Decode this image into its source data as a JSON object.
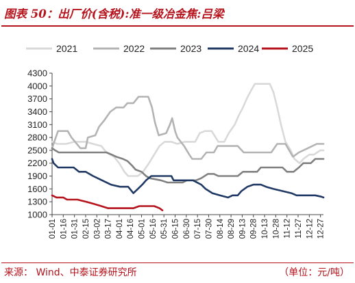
{
  "header": {
    "title": "图表 50：出厂价(含税):准一级冶金焦:吕梁"
  },
  "footer": {
    "source": "来源：  Wind、中泰证券研究所",
    "unit": "（单位：元/吨）"
  },
  "chart_data": {
    "type": "line",
    "title": "图表 50：出厂价(含税):准一级冶金焦:吕梁",
    "xlabel": "",
    "ylabel": "",
    "ylim": [
      1000,
      4300
    ],
    "yticks": [
      1000,
      1300,
      1600,
      1900,
      2200,
      2500,
      2800,
      3100,
      3400,
      3700,
      4000,
      4300
    ],
    "xlim_days": [
      1,
      365
    ],
    "xtick_labels": [
      "01-01",
      "01-16",
      "01-31",
      "02-15",
      "03-02",
      "03-17",
      "04-01",
      "04-16",
      "05-01",
      "05-16",
      "05-31",
      "06-15",
      "06-30",
      "07-15",
      "07-30",
      "08-14",
      "08-29",
      "09-13",
      "09-28",
      "10-13",
      "10-28",
      "11-12",
      "11-27",
      "12-12",
      "12-27"
    ],
    "grid": false,
    "legend_position": "top",
    "series": [
      {
        "name": "2021",
        "color": "#d9d9d9",
        "points": [
          [
            "01-01",
            2700
          ],
          [
            "01-08",
            2650
          ],
          [
            "01-20",
            2650
          ],
          [
            "01-31",
            2700
          ],
          [
            "02-15",
            2700
          ],
          [
            "02-25",
            2650
          ],
          [
            "03-08",
            2600
          ],
          [
            "03-15",
            2450
          ],
          [
            "03-25",
            2350
          ],
          [
            "04-01",
            2200
          ],
          [
            "04-08",
            2000
          ],
          [
            "04-13",
            1900
          ],
          [
            "04-26",
            1900
          ],
          [
            "05-03",
            2000
          ],
          [
            "05-11",
            2200
          ],
          [
            "05-18",
            2400
          ],
          [
            "05-25",
            2600
          ],
          [
            "06-01",
            2700
          ],
          [
            "06-10",
            2700
          ],
          [
            "06-18",
            2650
          ],
          [
            "06-28",
            2700
          ],
          [
            "07-12",
            2700
          ],
          [
            "07-18",
            2900
          ],
          [
            "07-25",
            2950
          ],
          [
            "08-03",
            2950
          ],
          [
            "08-12",
            2700
          ],
          [
            "08-20",
            2700
          ],
          [
            "08-26",
            2900
          ],
          [
            "09-03",
            3100
          ],
          [
            "09-08",
            3300
          ],
          [
            "09-14",
            3500
          ],
          [
            "09-19",
            3700
          ],
          [
            "09-25",
            3900
          ],
          [
            "09-30",
            4050
          ],
          [
            "10-20",
            4050
          ],
          [
            "10-25",
            3850
          ],
          [
            "10-30",
            3500
          ],
          [
            "11-04",
            3100
          ],
          [
            "11-10",
            2700
          ],
          [
            "11-17",
            2500
          ],
          [
            "11-22",
            2300
          ],
          [
            "11-29",
            2200
          ],
          [
            "12-04",
            2300
          ],
          [
            "12-12",
            2400
          ],
          [
            "12-18",
            2400
          ],
          [
            "12-27",
            2500
          ],
          [
            "12-31",
            2500
          ]
        ]
      },
      {
        "name": "2022",
        "color": "#b3b3b3",
        "points": [
          [
            "01-01",
            2550
          ],
          [
            "01-06",
            2800
          ],
          [
            "01-09",
            2950
          ],
          [
            "01-22",
            2950
          ],
          [
            "01-27",
            2800
          ],
          [
            "02-08",
            2550
          ],
          [
            "02-15",
            2550
          ],
          [
            "02-18",
            2800
          ],
          [
            "02-28",
            2850
          ],
          [
            "03-05",
            3050
          ],
          [
            "03-12",
            3200
          ],
          [
            "03-20",
            3400
          ],
          [
            "03-28",
            3500
          ],
          [
            "04-07",
            3500
          ],
          [
            "04-12",
            3600
          ],
          [
            "04-20",
            3600
          ],
          [
            "04-27",
            3750
          ],
          [
            "05-10",
            3750
          ],
          [
            "05-15",
            3500
          ],
          [
            "05-19",
            3150
          ],
          [
            "05-24",
            2850
          ],
          [
            "06-03",
            2900
          ],
          [
            "06-08",
            3100
          ],
          [
            "06-11",
            3250
          ],
          [
            "06-15",
            2950
          ],
          [
            "06-18",
            2800
          ],
          [
            "06-27",
            2600
          ],
          [
            "07-04",
            2400
          ],
          [
            "07-08",
            2300
          ],
          [
            "07-20",
            2300
          ],
          [
            "07-27",
            2450
          ],
          [
            "08-06",
            2450
          ],
          [
            "08-11",
            2600
          ],
          [
            "09-07",
            2600
          ],
          [
            "09-15",
            2450
          ],
          [
            "10-22",
            2450
          ],
          [
            "10-30",
            2650
          ],
          [
            "11-10",
            2650
          ],
          [
            "11-20",
            2350
          ],
          [
            "11-28",
            2450
          ],
          [
            "12-10",
            2550
          ],
          [
            "12-22",
            2650
          ],
          [
            "12-31",
            2650
          ]
        ]
      },
      {
        "name": "2023",
        "color": "#808080",
        "points": [
          [
            "01-01",
            2550
          ],
          [
            "01-05",
            2500
          ],
          [
            "01-10",
            2450
          ],
          [
            "03-15",
            2450
          ],
          [
            "03-22",
            2400
          ],
          [
            "03-28",
            2350
          ],
          [
            "04-06",
            2300
          ],
          [
            "04-12",
            2250
          ],
          [
            "04-18",
            2150
          ],
          [
            "04-23",
            2050
          ],
          [
            "05-01",
            2000
          ],
          [
            "05-07",
            1900
          ],
          [
            "05-12",
            1850
          ],
          [
            "05-27",
            1800
          ],
          [
            "06-05",
            1750
          ],
          [
            "06-25",
            1750
          ],
          [
            "07-01",
            1800
          ],
          [
            "07-13",
            1800
          ],
          [
            "07-20",
            1850
          ],
          [
            "07-29",
            1950
          ],
          [
            "08-06",
            1950
          ],
          [
            "08-12",
            1900
          ],
          [
            "09-07",
            1900
          ],
          [
            "09-14",
            2000
          ],
          [
            "10-03",
            2000
          ],
          [
            "10-08",
            2100
          ],
          [
            "11-06",
            2100
          ],
          [
            "11-12",
            2000
          ],
          [
            "11-21",
            2000
          ],
          [
            "11-28",
            2100
          ],
          [
            "12-04",
            2200
          ],
          [
            "12-14",
            2200
          ],
          [
            "12-20",
            2300
          ],
          [
            "12-31",
            2300
          ]
        ]
      },
      {
        "name": "2024",
        "color": "#1f3864",
        "points": [
          [
            "01-01",
            2300
          ],
          [
            "01-03",
            2200
          ],
          [
            "01-09",
            2100
          ],
          [
            "01-30",
            2100
          ],
          [
            "02-06",
            2000
          ],
          [
            "02-15",
            2000
          ],
          [
            "02-25",
            1900
          ],
          [
            "03-09",
            1800
          ],
          [
            "03-21",
            1700
          ],
          [
            "04-02",
            1650
          ],
          [
            "04-13",
            1650
          ],
          [
            "04-20",
            1500
          ],
          [
            "04-26",
            1600
          ],
          [
            "05-02",
            1700
          ],
          [
            "05-07",
            1800
          ],
          [
            "05-14",
            1900
          ],
          [
            "06-10",
            1900
          ],
          [
            "06-13",
            1800
          ],
          [
            "06-20",
            1800
          ],
          [
            "07-09",
            1800
          ],
          [
            "07-20",
            1700
          ],
          [
            "07-26",
            1600
          ],
          [
            "08-04",
            1500
          ],
          [
            "08-14",
            1450
          ],
          [
            "08-25",
            1400
          ],
          [
            "08-31",
            1450
          ],
          [
            "09-07",
            1450
          ],
          [
            "09-12",
            1550
          ],
          [
            "09-20",
            1650
          ],
          [
            "09-28",
            1700
          ],
          [
            "10-08",
            1700
          ],
          [
            "10-15",
            1650
          ],
          [
            "10-25",
            1600
          ],
          [
            "11-06",
            1550
          ],
          [
            "11-18",
            1500
          ],
          [
            "11-25",
            1450
          ],
          [
            "12-08",
            1450
          ],
          [
            "12-20",
            1450
          ],
          [
            "12-28",
            1420
          ],
          [
            "12-31",
            1400
          ]
        ]
      },
      {
        "name": "2025",
        "color": "#b5121b",
        "points": [
          [
            "01-01",
            1450
          ],
          [
            "01-07",
            1400
          ],
          [
            "01-16",
            1400
          ],
          [
            "01-21",
            1350
          ],
          [
            "02-04",
            1350
          ],
          [
            "02-16",
            1300
          ],
          [
            "02-26",
            1250
          ],
          [
            "03-08",
            1200
          ],
          [
            "03-17",
            1150
          ],
          [
            "04-06",
            1150
          ],
          [
            "04-20",
            1150
          ],
          [
            "04-28",
            1200
          ],
          [
            "05-18",
            1200
          ],
          [
            "05-25",
            1150
          ],
          [
            "05-29",
            1100
          ]
        ]
      }
    ]
  }
}
